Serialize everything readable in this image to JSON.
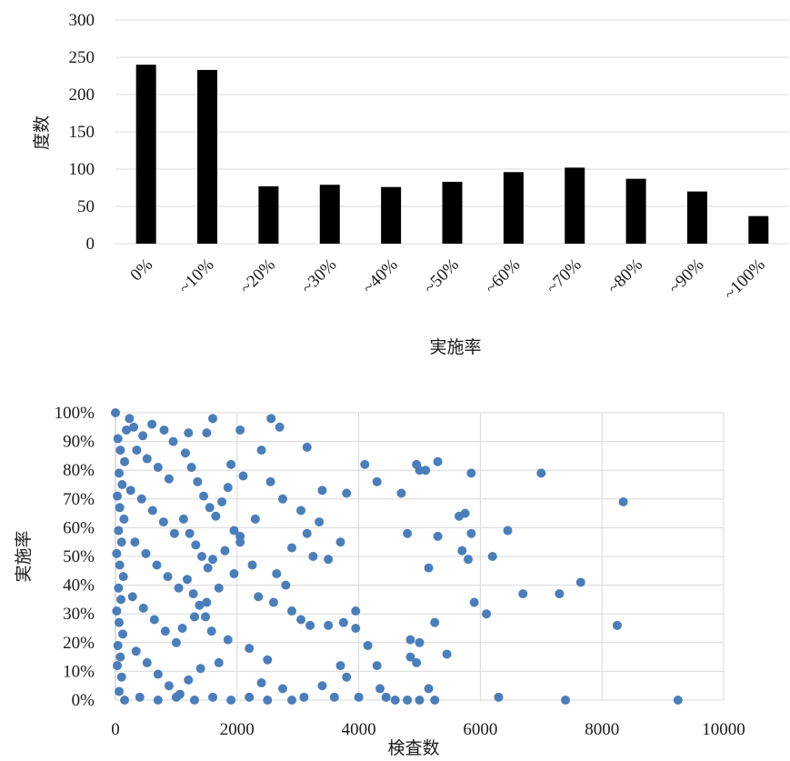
{
  "chart_data": [
    {
      "type": "bar",
      "categories": [
        "0%",
        "~10%",
        "~20%",
        "~30%",
        "~40%",
        "~50%",
        "~60%",
        "~70%",
        "~80%",
        "~90%",
        "~100%"
      ],
      "values": [
        240,
        233,
        77,
        79,
        76,
        83,
        96,
        102,
        87,
        70,
        37
      ],
      "xlabel": "実施率",
      "ylabel": "度数",
      "ylim": [
        0,
        300
      ],
      "yticks": [
        "0",
        "50",
        "100",
        "150",
        "200",
        "250",
        "300"
      ],
      "grid": true,
      "color": "#000000"
    },
    {
      "type": "scatter",
      "xlabel": "検査数",
      "ylabel": "実施率",
      "xlim": [
        0,
        10000
      ],
      "ylim": [
        0,
        1
      ],
      "xticks": [
        "0",
        "2000",
        "4000",
        "6000",
        "8000",
        "10000"
      ],
      "yticks": [
        "0%",
        "10%",
        "20%",
        "30%",
        "40%",
        "50%",
        "60%",
        "70%",
        "80%",
        "90%",
        "100%"
      ],
      "grid": true,
      "color": "#4a7ebb",
      "points": [
        [
          0,
          1.0
        ],
        [
          1600,
          0.98
        ],
        [
          2560,
          0.98
        ],
        [
          2700,
          0.95
        ],
        [
          230,
          0.98
        ],
        [
          1200,
          0.93
        ],
        [
          2050,
          0.94
        ],
        [
          1500,
          0.93
        ],
        [
          3150,
          0.88
        ],
        [
          2400,
          0.87
        ],
        [
          4950,
          0.82
        ],
        [
          4100,
          0.82
        ],
        [
          4300,
          0.76
        ],
        [
          4700,
          0.72
        ],
        [
          5000,
          0.8
        ],
        [
          5100,
          0.8
        ],
        [
          5300,
          0.83
        ],
        [
          5850,
          0.79
        ],
        [
          7000,
          0.79
        ],
        [
          8350,
          0.69
        ],
        [
          3800,
          0.72
        ],
        [
          4800,
          0.58
        ],
        [
          5750,
          0.65
        ],
        [
          5650,
          0.64
        ],
        [
          5850,
          0.58
        ],
        [
          6450,
          0.59
        ],
        [
          5300,
          0.57
        ],
        [
          5700,
          0.52
        ],
        [
          5800,
          0.49
        ],
        [
          6200,
          0.5
        ],
        [
          5150,
          0.46
        ],
        [
          3700,
          0.55
        ],
        [
          3500,
          0.49
        ],
        [
          3250,
          0.5
        ],
        [
          7650,
          0.41
        ],
        [
          6700,
          0.37
        ],
        [
          7300,
          0.37
        ],
        [
          5900,
          0.34
        ],
        [
          6100,
          0.3
        ],
        [
          3950,
          0.31
        ],
        [
          3500,
          0.26
        ],
        [
          3750,
          0.27
        ],
        [
          5250,
          0.27
        ],
        [
          8250,
          0.26
        ],
        [
          3950,
          0.25
        ],
        [
          4150,
          0.19
        ],
        [
          4850,
          0.21
        ],
        [
          5000,
          0.2
        ],
        [
          4850,
          0.15
        ],
        [
          4950,
          0.13
        ],
        [
          5450,
          0.16
        ],
        [
          4300,
          0.12
        ],
        [
          3700,
          0.12
        ],
        [
          3800,
          0.08
        ],
        [
          3400,
          0.05
        ],
        [
          4350,
          0.04
        ],
        [
          5150,
          0.04
        ],
        [
          4000,
          0.01
        ],
        [
          4450,
          0.01
        ],
        [
          4600,
          0.0
        ],
        [
          4800,
          0.0
        ],
        [
          5000,
          0.0
        ],
        [
          5250,
          0.0
        ],
        [
          6300,
          0.01
        ],
        [
          7400,
          0.0
        ],
        [
          9250,
          0.0
        ],
        [
          3200,
          0.26
        ],
        [
          3050,
          0.28
        ],
        [
          2900,
          0.31
        ],
        [
          2600,
          0.34
        ],
        [
          2350,
          0.36
        ],
        [
          2800,
          0.4
        ],
        [
          2650,
          0.44
        ],
        [
          2250,
          0.47
        ],
        [
          2900,
          0.53
        ],
        [
          3150,
          0.58
        ],
        [
          3350,
          0.62
        ],
        [
          3050,
          0.66
        ],
        [
          2750,
          0.7
        ],
        [
          3400,
          0.73
        ],
        [
          2550,
          0.76
        ],
        [
          2100,
          0.78
        ],
        [
          1900,
          0.82
        ],
        [
          2300,
          0.63
        ],
        [
          2050,
          0.57
        ],
        [
          1800,
          0.52
        ],
        [
          1600,
          0.49
        ],
        [
          1950,
          0.44
        ],
        [
          1700,
          0.39
        ],
        [
          1500,
          0.34
        ],
        [
          1300,
          0.29
        ],
        [
          1100,
          0.25
        ],
        [
          1850,
          0.21
        ],
        [
          2200,
          0.18
        ],
        [
          2500,
          0.14
        ],
        [
          1700,
          0.13
        ],
        [
          1400,
          0.11
        ],
        [
          1200,
          0.07
        ],
        [
          2400,
          0.06
        ],
        [
          2750,
          0.04
        ],
        [
          3100,
          0.01
        ],
        [
          3600,
          0.01
        ],
        [
          2900,
          0.0
        ],
        [
          2500,
          0.0
        ],
        [
          2200,
          0.01
        ],
        [
          1900,
          0.0
        ],
        [
          1600,
          0.01
        ],
        [
          1300,
          0.0
        ],
        [
          1000,
          0.01
        ],
        [
          700,
          0.0
        ],
        [
          400,
          0.01
        ],
        [
          150,
          0.0
        ],
        [
          60,
          0.03
        ],
        [
          100,
          0.08
        ],
        [
          30,
          0.12
        ],
        [
          80,
          0.15
        ],
        [
          40,
          0.19
        ],
        [
          120,
          0.23
        ],
        [
          60,
          0.27
        ],
        [
          20,
          0.31
        ],
        [
          90,
          0.35
        ],
        [
          50,
          0.39
        ],
        [
          130,
          0.43
        ],
        [
          70,
          0.47
        ],
        [
          20,
          0.51
        ],
        [
          100,
          0.55
        ],
        [
          50,
          0.59
        ],
        [
          140,
          0.63
        ],
        [
          70,
          0.67
        ],
        [
          30,
          0.71
        ],
        [
          110,
          0.75
        ],
        [
          60,
          0.79
        ],
        [
          150,
          0.83
        ],
        [
          80,
          0.87
        ],
        [
          40,
          0.91
        ],
        [
          180,
          0.94
        ],
        [
          300,
          0.95
        ],
        [
          450,
          0.92
        ],
        [
          600,
          0.96
        ],
        [
          800,
          0.94
        ],
        [
          950,
          0.9
        ],
        [
          350,
          0.87
        ],
        [
          520,
          0.84
        ],
        [
          700,
          0.81
        ],
        [
          880,
          0.77
        ],
        [
          250,
          0.73
        ],
        [
          430,
          0.7
        ],
        [
          610,
          0.66
        ],
        [
          790,
          0.62
        ],
        [
          970,
          0.58
        ],
        [
          320,
          0.55
        ],
        [
          500,
          0.51
        ],
        [
          680,
          0.47
        ],
        [
          860,
          0.43
        ],
        [
          1040,
          0.39
        ],
        [
          280,
          0.36
        ],
        [
          460,
          0.32
        ],
        [
          640,
          0.28
        ],
        [
          820,
          0.24
        ],
        [
          1000,
          0.2
        ],
        [
          340,
          0.17
        ],
        [
          520,
          0.13
        ],
        [
          700,
          0.09
        ],
        [
          880,
          0.05
        ],
        [
          1060,
          0.02
        ],
        [
          1150,
          0.86
        ],
        [
          1250,
          0.81
        ],
        [
          1350,
          0.76
        ],
        [
          1450,
          0.71
        ],
        [
          1550,
          0.67
        ],
        [
          1120,
          0.63
        ],
        [
          1220,
          0.58
        ],
        [
          1320,
          0.54
        ],
        [
          1420,
          0.5
        ],
        [
          1520,
          0.46
        ],
        [
          1180,
          0.42
        ],
        [
          1280,
          0.37
        ],
        [
          1380,
          0.33
        ],
        [
          1480,
          0.29
        ],
        [
          1580,
          0.24
        ],
        [
          1650,
          0.64
        ],
        [
          1750,
          0.69
        ],
        [
          1850,
          0.74
        ],
        [
          1950,
          0.59
        ],
        [
          2050,
          0.55
        ]
      ]
    }
  ]
}
